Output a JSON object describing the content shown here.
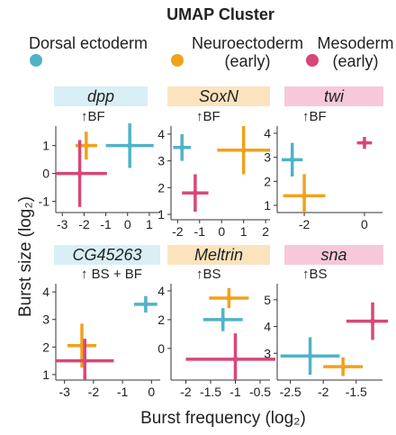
{
  "legend_title": "UMAP Cluster",
  "legend": [
    {
      "name": "Dorsal ectoderm",
      "color": "#4fb3c8"
    },
    {
      "name": "Neuroectoderm (early)",
      "color": "#f0a21a"
    },
    {
      "name": "Mesoderm (early)",
      "color": "#d9467a"
    }
  ],
  "xlabel": "Burst frequency (log₂)",
  "ylabel": "Burst size (log₂)",
  "chart_data": [
    {
      "type": "errorcross",
      "title": "dpp",
      "title_bg": "#d8eff5",
      "annotation": "↑BF",
      "xlim": [
        -3.3,
        1.5
      ],
      "xticks": [
        -3,
        -2,
        -1,
        0,
        1
      ],
      "ylim": [
        -1.4,
        1.7
      ],
      "yticks": [
        -1,
        0,
        1
      ],
      "series": [
        {
          "color": "#4fb3c8",
          "x": [
            0.1
          ],
          "values": [
            1.0
          ],
          "xerr": [
            1.1
          ],
          "yerr": [
            0.8
          ]
        },
        {
          "color": "#f0a21a",
          "x": [
            -1.9
          ],
          "values": [
            1.0
          ],
          "xerr": [
            0.5
          ],
          "yerr": [
            0.5
          ]
        },
        {
          "color": "#d9467a",
          "x": [
            -2.2
          ],
          "values": [
            0.0
          ],
          "xerr": [
            1.25
          ],
          "yerr": [
            1.2
          ]
        }
      ]
    },
    {
      "type": "errorcross",
      "title": "SoxN",
      "title_bg": "#fbe3bd",
      "annotation": "↑BF",
      "xlim": [
        -2.3,
        2.2
      ],
      "xticks": [
        -2,
        -1,
        0,
        1,
        2
      ],
      "ylim": [
        0.8,
        4.3
      ],
      "yticks": [
        1,
        2,
        3,
        4
      ],
      "series": [
        {
          "color": "#4fb3c8",
          "x": [
            -1.8
          ],
          "values": [
            3.5
          ],
          "xerr": [
            0.4
          ],
          "yerr": [
            0.5
          ]
        },
        {
          "color": "#f0a21a",
          "x": [
            1.0
          ],
          "values": [
            3.4
          ],
          "xerr": [
            1.2
          ],
          "yerr": [
            0.9
          ]
        },
        {
          "color": "#d9467a",
          "x": [
            -1.2
          ],
          "values": [
            1.8
          ],
          "xerr": [
            0.6
          ],
          "yerr": [
            0.7
          ]
        }
      ]
    },
    {
      "type": "errorcross",
      "title": "twi",
      "title_bg": "#f6c8da",
      "annotation": "↑BF",
      "xlim": [
        -2.9,
        0.6
      ],
      "xticks": [
        -2,
        0
      ],
      "ylim": [
        0.7,
        4.3
      ],
      "yticks": [
        1,
        2,
        3,
        4
      ],
      "series": [
        {
          "color": "#4fb3c8",
          "x": [
            -2.4
          ],
          "values": [
            2.9
          ],
          "xerr": [
            0.35
          ],
          "yerr": [
            0.7
          ]
        },
        {
          "color": "#f0a21a",
          "x": [
            -2.0
          ],
          "values": [
            1.4
          ],
          "xerr": [
            0.7
          ],
          "yerr": [
            0.9
          ]
        },
        {
          "color": "#d9467a",
          "x": [
            0.0
          ],
          "values": [
            3.6
          ],
          "xerr": [
            0.25
          ],
          "yerr": [
            0.25
          ]
        }
      ]
    },
    {
      "type": "errorcross",
      "title": "CG45263",
      "title_bg": "#d8eff5",
      "annotation": "↑ BS + BF",
      "xlim": [
        -3.3,
        0.3
      ],
      "xticks": [
        -3,
        -2,
        -1,
        0
      ],
      "ylim": [
        0.8,
        4.3
      ],
      "yticks": [
        1,
        2,
        3,
        4
      ],
      "series": [
        {
          "color": "#4fb3c8",
          "x": [
            -0.2
          ],
          "values": [
            3.55
          ],
          "xerr": [
            0.4
          ],
          "yerr": [
            0.3
          ]
        },
        {
          "color": "#f0a21a",
          "x": [
            -2.4
          ],
          "values": [
            2.05
          ],
          "xerr": [
            0.5
          ],
          "yerr": [
            0.8
          ]
        },
        {
          "color": "#d9467a",
          "x": [
            -2.3
          ],
          "values": [
            1.5
          ],
          "xerr": [
            1.0
          ],
          "yerr": [
            0.8
          ]
        }
      ]
    },
    {
      "type": "errorcross",
      "title": "Meltrin",
      "title_bg": "#fbe3bd",
      "annotation": "↑BS",
      "xlim": [
        -2.3,
        -0.3
      ],
      "xticks": [
        -2,
        -1.5,
        -1,
        -0.5
      ],
      "ylim": [
        -2.2,
        4.5
      ],
      "yticks": [
        0,
        2,
        4
      ],
      "series": [
        {
          "color": "#f0a21a",
          "x": [
            -1.13
          ],
          "values": [
            3.5
          ],
          "xerr": [
            0.4
          ],
          "yerr": [
            0.7
          ]
        },
        {
          "color": "#4fb3c8",
          "x": [
            -1.25
          ],
          "values": [
            2.0
          ],
          "xerr": [
            0.4
          ],
          "yerr": [
            0.8
          ]
        },
        {
          "color": "#d9467a",
          "x": [
            -1.0
          ],
          "values": [
            -0.75
          ],
          "xerr": [
            1.0
          ],
          "yerr": [
            1.8
          ]
        }
      ]
    },
    {
      "type": "errorcross",
      "title": "sna",
      "title_bg": "#f6c8da",
      "annotation": "↑BS",
      "xlim": [
        -2.7,
        -1.1
      ],
      "xticks": [
        -2.5,
        -2,
        -1.5
      ],
      "ylim": [
        2.0,
        5.6
      ],
      "yticks": [
        3,
        4,
        5
      ],
      "series": [
        {
          "color": "#d9467a",
          "x": [
            -1.25
          ],
          "values": [
            4.2
          ],
          "xerr": [
            0.4
          ],
          "yerr": [
            0.7
          ]
        },
        {
          "color": "#4fb3c8",
          "x": [
            -2.2
          ],
          "values": [
            2.9
          ],
          "xerr": [
            0.45
          ],
          "yerr": [
            0.7
          ]
        },
        {
          "color": "#f0a21a",
          "x": [
            -1.7
          ],
          "values": [
            2.5
          ],
          "xerr": [
            0.3
          ],
          "yerr": [
            0.35
          ]
        }
      ]
    }
  ]
}
